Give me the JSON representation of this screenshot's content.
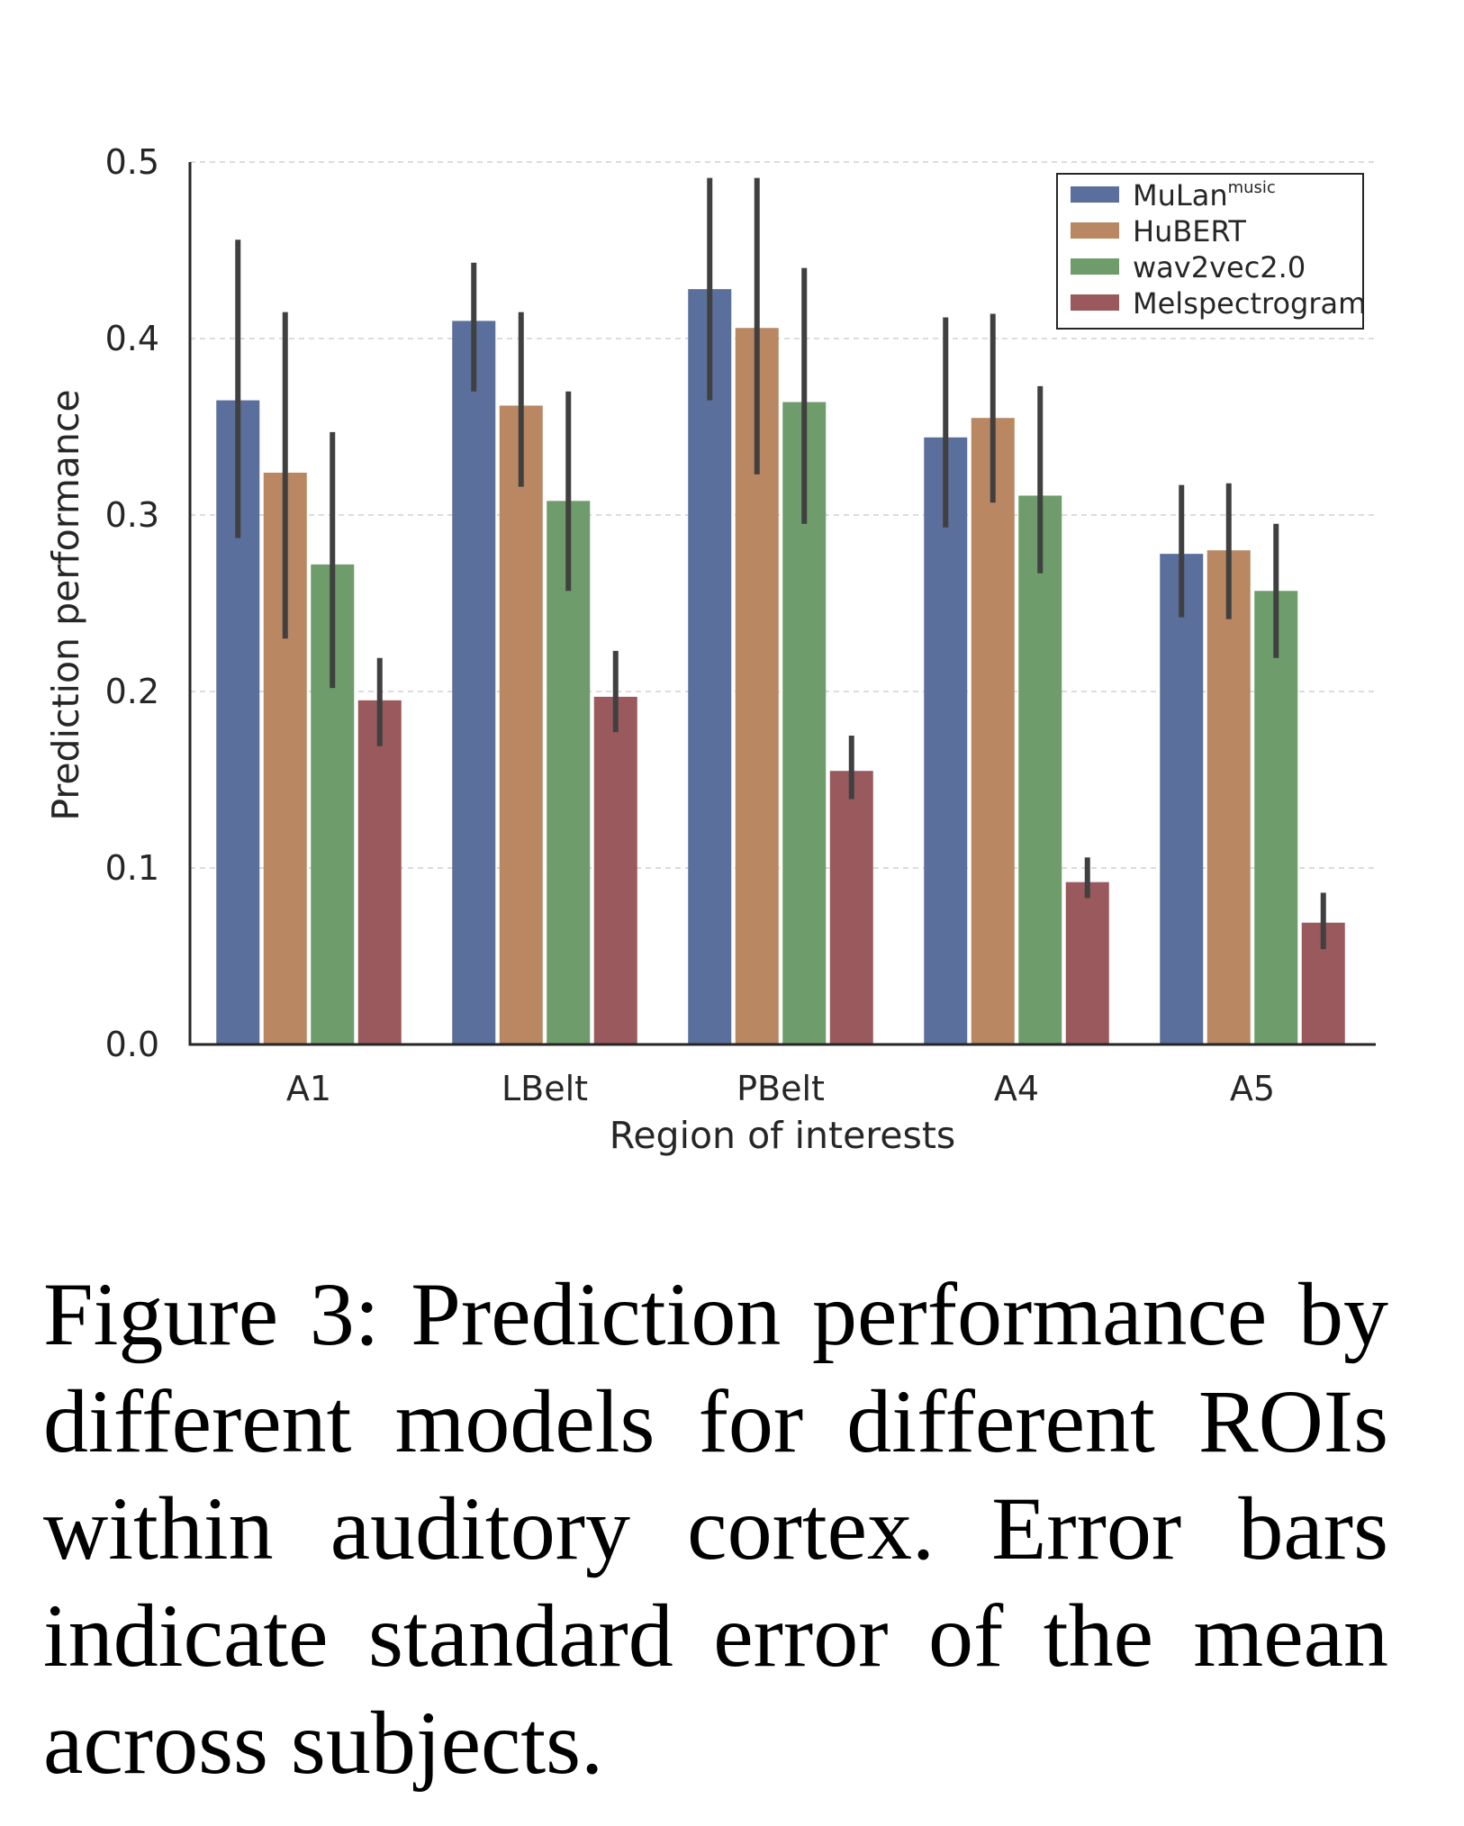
{
  "chart_data": {
    "type": "bar",
    "title": "",
    "xlabel": "Region of interests",
    "ylabel": "Prediction performance",
    "ylim": [
      0,
      0.5
    ],
    "yticks": [
      0.0,
      0.1,
      0.2,
      0.3,
      0.4,
      0.5
    ],
    "ytick_labels": [
      "0.0",
      "0.1",
      "0.2",
      "0.3",
      "0.4",
      "0.5"
    ],
    "grid": "horizontal dashed",
    "legend_position": "top-right",
    "categories": [
      "A1",
      "LBelt",
      "PBelt",
      "A4",
      "A5"
    ],
    "series": [
      {
        "name": "MuLan",
        "name_sup": "music",
        "color": "#5b6f9c",
        "values": [
          0.365,
          0.41,
          0.428,
          0.344,
          0.278
        ],
        "error_low": [
          0.287,
          0.37,
          0.365,
          0.293,
          0.242
        ],
        "error_high": [
          0.456,
          0.443,
          0.491,
          0.412,
          0.317
        ]
      },
      {
        "name": "HuBERT",
        "color": "#b98762",
        "values": [
          0.324,
          0.362,
          0.406,
          0.355,
          0.28
        ],
        "error_low": [
          0.23,
          0.316,
          0.323,
          0.307,
          0.241
        ],
        "error_high": [
          0.415,
          0.415,
          0.491,
          0.414,
          0.318
        ]
      },
      {
        "name": "wav2vec2.0",
        "color": "#6e9c6b",
        "values": [
          0.272,
          0.308,
          0.364,
          0.311,
          0.257
        ],
        "error_low": [
          0.202,
          0.257,
          0.295,
          0.267,
          0.219
        ],
        "error_high": [
          0.347,
          0.37,
          0.44,
          0.373,
          0.295
        ]
      },
      {
        "name": "Melspectrogram",
        "color": "#9a595c",
        "values": [
          0.195,
          0.197,
          0.155,
          0.092,
          0.069
        ],
        "error_low": [
          0.169,
          0.177,
          0.139,
          0.083,
          0.054
        ],
        "error_high": [
          0.219,
          0.223,
          0.175,
          0.106,
          0.086
        ]
      }
    ]
  },
  "colors": {
    "error_bar": "#404040",
    "axis": "#262626",
    "grid": "#d0d0d0"
  },
  "caption": "Figure 3: Prediction performance by different models for different ROIs within auditory cortex. Error bars indicate standard error of the mean across subjects."
}
